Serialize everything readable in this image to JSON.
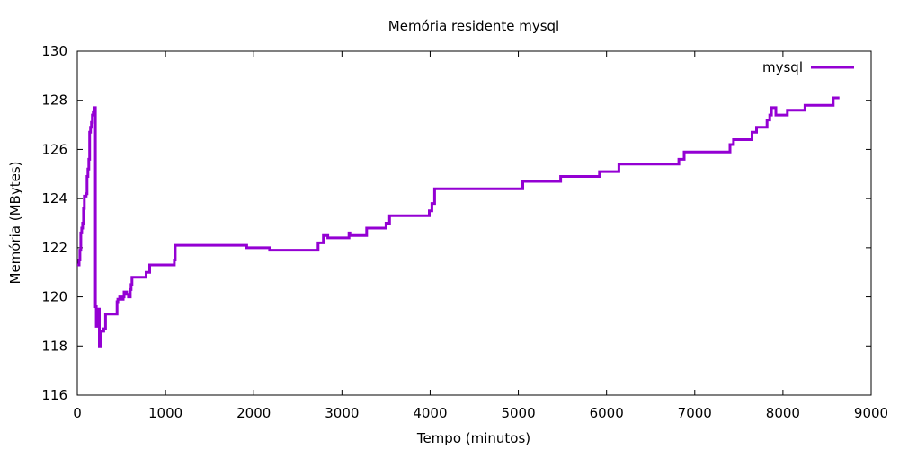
{
  "chart_data": {
    "type": "line",
    "title": "Memória residente mysql",
    "xlabel": "Tempo (minutos)",
    "ylabel": "Memória (MBytes)",
    "xlim": [
      0,
      9000
    ],
    "ylim": [
      116,
      130
    ],
    "xticks": [
      0,
      1000,
      2000,
      3000,
      4000,
      5000,
      6000,
      7000,
      8000,
      9000
    ],
    "yticks": [
      116,
      118,
      120,
      122,
      124,
      126,
      128,
      130
    ],
    "xtick_labels": [
      "0",
      "1000",
      "2000",
      "3000",
      "4000",
      "5000",
      "6000",
      "7000",
      "8000",
      "9000"
    ],
    "ytick_labels": [
      "116",
      "118",
      "120",
      "122",
      "124",
      "126",
      "128",
      "130"
    ],
    "grid": false,
    "legend_position": "top-right",
    "series": [
      {
        "name": "mysql",
        "color": "#9400d3",
        "step": true,
        "points": [
          [
            0,
            121.3
          ],
          [
            20,
            121.5
          ],
          [
            30,
            121.9
          ],
          [
            40,
            122.6
          ],
          [
            50,
            122.8
          ],
          [
            60,
            123.0
          ],
          [
            70,
            123.6
          ],
          [
            80,
            124.1
          ],
          [
            100,
            124.2
          ],
          [
            110,
            124.9
          ],
          [
            120,
            125.2
          ],
          [
            130,
            125.6
          ],
          [
            140,
            126.7
          ],
          [
            150,
            126.9
          ],
          [
            160,
            127.1
          ],
          [
            170,
            127.4
          ],
          [
            180,
            127.5
          ],
          [
            190,
            127.7
          ],
          [
            200,
            127.7
          ],
          [
            205,
            119.6
          ],
          [
            215,
            118.8
          ],
          [
            225,
            119.2
          ],
          [
            235,
            119.5
          ],
          [
            250,
            118.0
          ],
          [
            260,
            118.3
          ],
          [
            270,
            118.6
          ],
          [
            300,
            118.7
          ],
          [
            320,
            119.3
          ],
          [
            400,
            119.3
          ],
          [
            450,
            119.8
          ],
          [
            460,
            119.9
          ],
          [
            480,
            120.0
          ],
          [
            500,
            119.9
          ],
          [
            520,
            120.0
          ],
          [
            530,
            120.2
          ],
          [
            560,
            120.1
          ],
          [
            580,
            120.0
          ],
          [
            600,
            120.3
          ],
          [
            610,
            120.5
          ],
          [
            620,
            120.8
          ],
          [
            780,
            121.0
          ],
          [
            820,
            121.3
          ],
          [
            920,
            121.3
          ],
          [
            1100,
            121.5
          ],
          [
            1110,
            122.1
          ],
          [
            1900,
            122.1
          ],
          [
            1920,
            122.0
          ],
          [
            2180,
            121.9
          ],
          [
            2720,
            121.9
          ],
          [
            2730,
            122.2
          ],
          [
            2790,
            122.5
          ],
          [
            2840,
            122.4
          ],
          [
            3080,
            122.6
          ],
          [
            3090,
            122.5
          ],
          [
            3280,
            122.8
          ],
          [
            3500,
            123.0
          ],
          [
            3540,
            123.3
          ],
          [
            3990,
            123.5
          ],
          [
            4020,
            123.8
          ],
          [
            4050,
            124.4
          ],
          [
            5000,
            124.4
          ],
          [
            5050,
            124.7
          ],
          [
            5480,
            124.9
          ],
          [
            5900,
            124.9
          ],
          [
            5920,
            125.1
          ],
          [
            6140,
            125.4
          ],
          [
            6800,
            125.4
          ],
          [
            6820,
            125.6
          ],
          [
            6880,
            125.9
          ],
          [
            7380,
            125.9
          ],
          [
            7400,
            126.2
          ],
          [
            7440,
            126.4
          ],
          [
            7650,
            126.7
          ],
          [
            7700,
            126.9
          ],
          [
            7800,
            126.9
          ],
          [
            7820,
            127.2
          ],
          [
            7850,
            127.4
          ],
          [
            7870,
            127.7
          ],
          [
            7920,
            127.4
          ],
          [
            8050,
            127.6
          ],
          [
            8250,
            127.8
          ],
          [
            8570,
            128.1
          ],
          [
            8640,
            128.1
          ]
        ]
      }
    ]
  }
}
